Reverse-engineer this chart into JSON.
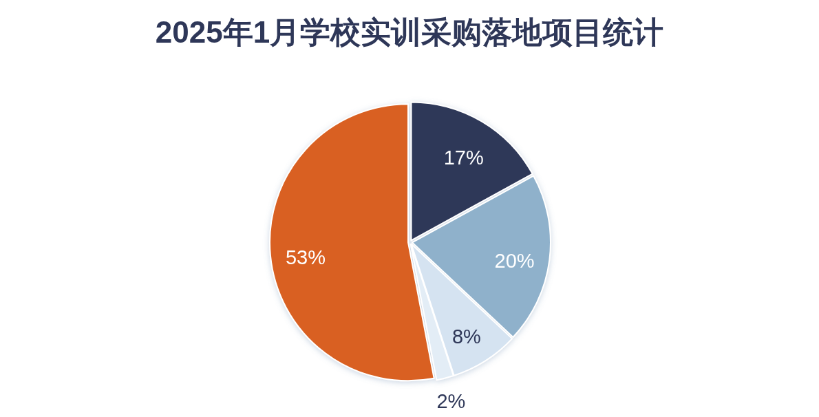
{
  "chart_data": {
    "type": "pie",
    "title": "2025年1月学校实训采购落地项目统计",
    "categories": [
      null,
      null,
      null,
      null,
      null
    ],
    "values": [
      17,
      20,
      8,
      2,
      53
    ],
    "colors": [
      "#2e3758",
      "#8fb1cb",
      "#d5e3f1",
      "#e3edf6",
      "#d96020"
    ],
    "value_labels": [
      "17%",
      "20%",
      "8%",
      "2%",
      "53%"
    ]
  }
}
